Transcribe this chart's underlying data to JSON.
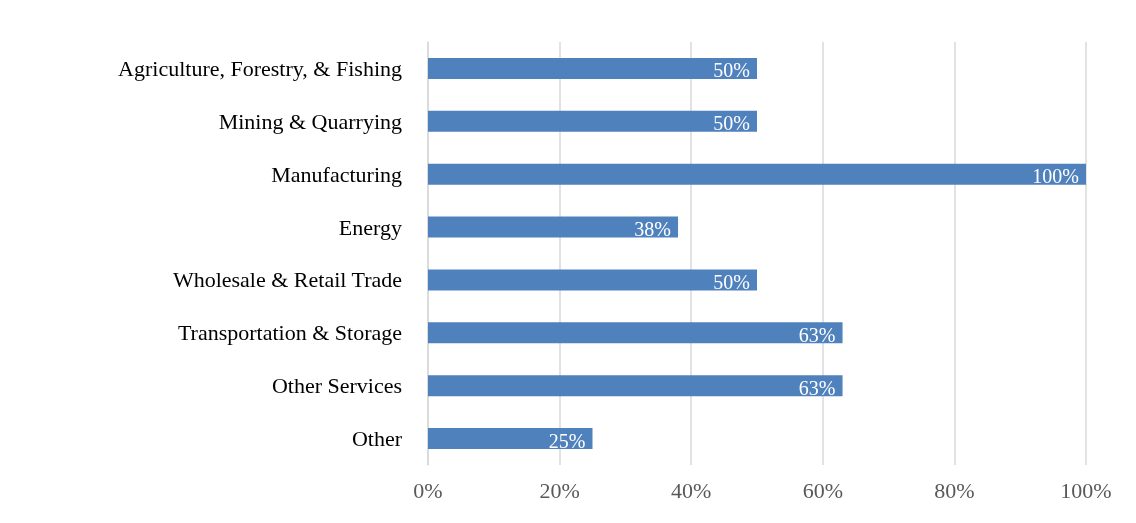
{
  "chart_data": {
    "type": "bar",
    "orientation": "horizontal",
    "categories": [
      "Agriculture, Forestry, & Fishing",
      "Mining & Quarrying",
      "Manufacturing",
      "Energy",
      "Wholesale & Retail Trade",
      "Transportation & Storage",
      "Other Services",
      "Other"
    ],
    "values": [
      50,
      50,
      100,
      38,
      50,
      63,
      63,
      25
    ],
    "value_labels": [
      "50%",
      "50%",
      "100%",
      "38%",
      "50%",
      "63%",
      "63%",
      "25%"
    ],
    "color": "#4f81bd",
    "xlim": [
      0,
      100
    ],
    "xticks": [
      {
        "value": 0,
        "label": "0%"
      },
      {
        "value": 20,
        "label": "20%"
      },
      {
        "value": 40,
        "label": "40%"
      },
      {
        "value": 60,
        "label": "60%"
      },
      {
        "value": 80,
        "label": "80%"
      },
      {
        "value": 100,
        "label": "100%"
      }
    ],
    "grid": "x"
  }
}
